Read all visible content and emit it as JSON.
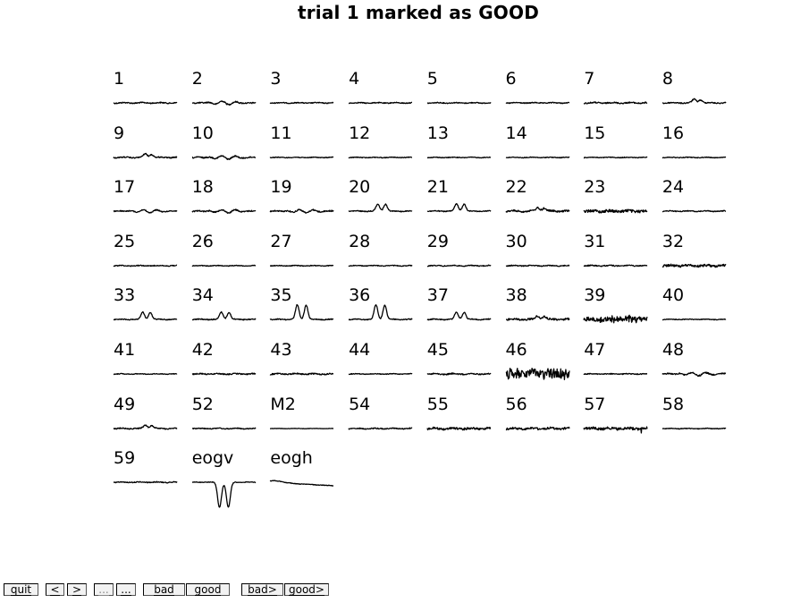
{
  "title": "trial 1 marked as GOOD",
  "channels": [
    {
      "label": "1",
      "shape": "flat",
      "noise": 0.6
    },
    {
      "label": "2",
      "shape": "wiggle",
      "noise": 0.7
    },
    {
      "label": "3",
      "shape": "flat",
      "noise": 0.5
    },
    {
      "label": "4",
      "shape": "flat",
      "noise": 0.5
    },
    {
      "label": "5",
      "shape": "flat",
      "noise": 0.5
    },
    {
      "label": "6",
      "shape": "flat",
      "noise": 0.5
    },
    {
      "label": "7",
      "shape": "flat",
      "noise": 0.7
    },
    {
      "label": "8",
      "shape": "bump",
      "noise": 0.6
    },
    {
      "label": "9",
      "shape": "bump",
      "noise": 0.6
    },
    {
      "label": "10",
      "shape": "wiggle",
      "noise": 0.7
    },
    {
      "label": "11",
      "shape": "flat",
      "noise": 0.4
    },
    {
      "label": "12",
      "shape": "flat",
      "noise": 0.4
    },
    {
      "label": "13",
      "shape": "flat",
      "noise": 0.4
    },
    {
      "label": "14",
      "shape": "flat",
      "noise": 0.4
    },
    {
      "label": "15",
      "shape": "flat",
      "noise": 0.4
    },
    {
      "label": "16",
      "shape": "flat",
      "noise": 0.4
    },
    {
      "label": "17",
      "shape": "wiggle",
      "noise": 0.5
    },
    {
      "label": "18",
      "shape": "wiggle",
      "noise": 0.7
    },
    {
      "label": "19",
      "shape": "wiggle",
      "noise": 0.7
    },
    {
      "label": "20",
      "shape": "double-mid",
      "noise": 0.5
    },
    {
      "label": "21",
      "shape": "double-mid",
      "noise": 0.5
    },
    {
      "label": "22",
      "shape": "bump",
      "noise": 0.9
    },
    {
      "label": "23",
      "shape": "noisy",
      "noise": 1.6
    },
    {
      "label": "24",
      "shape": "flat",
      "noise": 0.5
    },
    {
      "label": "25",
      "shape": "flat",
      "noise": 0.5
    },
    {
      "label": "26",
      "shape": "flat",
      "noise": 0.4
    },
    {
      "label": "27",
      "shape": "flat",
      "noise": 0.4
    },
    {
      "label": "28",
      "shape": "flat",
      "noise": 0.4
    },
    {
      "label": "29",
      "shape": "flat",
      "noise": 0.5
    },
    {
      "label": "30",
      "shape": "flat",
      "noise": 0.5
    },
    {
      "label": "31",
      "shape": "flat",
      "noise": 0.6
    },
    {
      "label": "32",
      "shape": "noisy",
      "noise": 1.3
    },
    {
      "label": "33",
      "shape": "double-mid",
      "noise": 0.5
    },
    {
      "label": "34",
      "shape": "double-mid",
      "noise": 0.5
    },
    {
      "label": "35",
      "shape": "double-high",
      "noise": 0.5
    },
    {
      "label": "36",
      "shape": "double-high",
      "noise": 0.5
    },
    {
      "label": "37",
      "shape": "double-mid",
      "noise": 0.5
    },
    {
      "label": "38",
      "shape": "bump",
      "noise": 1.0
    },
    {
      "label": "39",
      "shape": "noisy-burst",
      "noise": 2.5
    },
    {
      "label": "40",
      "shape": "flat",
      "noise": 0.4
    },
    {
      "label": "41",
      "shape": "flat",
      "noise": 0.4
    },
    {
      "label": "42",
      "shape": "flat",
      "noise": 0.6
    },
    {
      "label": "43",
      "shape": "flat",
      "noise": 0.7
    },
    {
      "label": "44",
      "shape": "flat",
      "noise": 0.4
    },
    {
      "label": "45",
      "shape": "flat",
      "noise": 0.7
    },
    {
      "label": "46",
      "shape": "very-noisy",
      "noise": 4.5
    },
    {
      "label": "47",
      "shape": "flat",
      "noise": 0.5
    },
    {
      "label": "48",
      "shape": "wiggle",
      "noise": 0.8
    },
    {
      "label": "49",
      "shape": "bump",
      "noise": 0.6
    },
    {
      "label": "52",
      "shape": "flat",
      "noise": 0.5
    },
    {
      "label": "M2",
      "shape": "flat",
      "noise": 0.2
    },
    {
      "label": "54",
      "shape": "flat",
      "noise": 0.6
    },
    {
      "label": "55",
      "shape": "noisy",
      "noise": 1.2
    },
    {
      "label": "56",
      "shape": "noisy",
      "noise": 1.1
    },
    {
      "label": "57",
      "shape": "noisy-spike",
      "noise": 1.4
    },
    {
      "label": "58",
      "shape": "flat",
      "noise": 0.4
    },
    {
      "label": "59",
      "shape": "flat",
      "noise": 0.5
    },
    {
      "label": "eogv",
      "shape": "eog-dip",
      "noise": 0.3
    },
    {
      "label": "eogh",
      "shape": "drift",
      "noise": 0.3
    }
  ],
  "toolbar": {
    "quit": "quit",
    "prev": "<",
    "next": ">",
    "prev_bad": "...",
    "next_bad": "...",
    "bad": "bad",
    "good": "good",
    "bad_next": "bad>",
    "good_next": "good>"
  }
}
